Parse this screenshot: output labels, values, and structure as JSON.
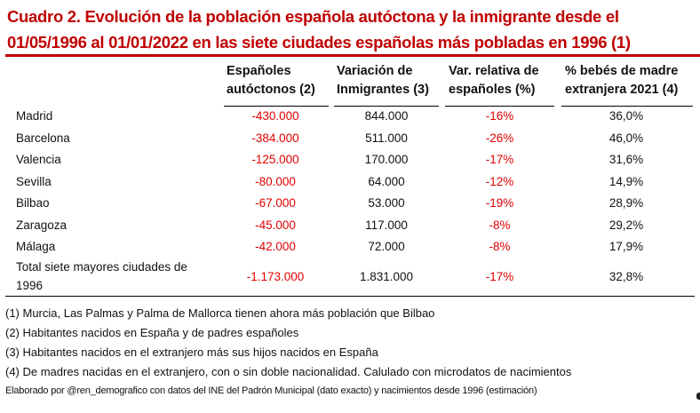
{
  "title": "Cuadro 2. Evolución de la población española autóctona y la inmigrante desde el 01/05/1996 al 01/01/2022 en las siete ciudades españolas más pobladas en 1996 (1)",
  "headers": [
    {
      "line1": "Españoles",
      "line2": "autóctonos (2)"
    },
    {
      "line1": "Variación de",
      "line2": "Inmigrantes (3)"
    },
    {
      "line1": "Var. relativa de",
      "line2": "españoles (%)"
    },
    {
      "line1": "% bebés de madre",
      "line2": "extranjera 2021 (4)"
    }
  ],
  "rows": [
    {
      "city": "Madrid",
      "autoctonos": "-430.000",
      "inmigrantes": "844.000",
      "var_rel": "-16%",
      "bebes": "36,0%"
    },
    {
      "city": "Barcelona",
      "autoctonos": "-384.000",
      "inmigrantes": "511.000",
      "var_rel": "-26%",
      "bebes": "46,0%"
    },
    {
      "city": "Valencia",
      "autoctonos": "-125.000",
      "inmigrantes": "170.000",
      "var_rel": "-17%",
      "bebes": "31,6%"
    },
    {
      "city": "Sevilla",
      "autoctonos": "-80.000",
      "inmigrantes": "64.000",
      "var_rel": "-12%",
      "bebes": "14,9%"
    },
    {
      "city": "Bilbao",
      "autoctonos": "-67.000",
      "inmigrantes": "53.000",
      "var_rel": "-19%",
      "bebes": "28,9%"
    },
    {
      "city": "Zaragoza",
      "autoctonos": "-45.000",
      "inmigrantes": "117.000",
      "var_rel": "-8%",
      "bebes": "29,2%"
    },
    {
      "city": "Málaga",
      "autoctonos": "-42.000",
      "inmigrantes": "72.000",
      "var_rel": "-8%",
      "bebes": "17,9%"
    }
  ],
  "total": {
    "city_line1": "Total siete mayores ciudades de",
    "city_line2": "1996",
    "autoctonos": "-1.173.000",
    "inmigrantes": "1.831.000",
    "var_rel": "-17%",
    "bebes": "32,8%"
  },
  "notes": [
    "(1) Murcia, Las Palmas y Palma de Mallorca tienen ahora más población que Bilbao",
    "(2) Habitantes nacidos en España y de padres españoles",
    "(3) Habitantes nacidos en el extranjero más sus hijos nacidos en España",
    "(4) De madres nacidas en el extranjero, con o sin doble nacionalidad. Calulado con microdatos de nacimientos"
  ],
  "source": "Elaborado por @ren_demografico con datos del INE del Padrón Municipal (dato exacto) y nacimientos desde 1996 (estimación)",
  "colors": {
    "accent": "#c00000",
    "negative": "#e00000"
  }
}
